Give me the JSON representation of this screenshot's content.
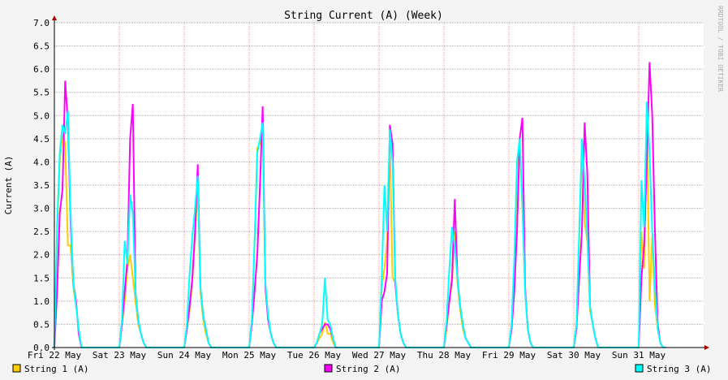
{
  "chart_data": {
    "type": "line",
    "title": "String Current (A) (Week)",
    "y_label": "Current (A)",
    "watermark": "RRDTOOL / TOBI OETIKER",
    "x": [
      0,
      1,
      2,
      3,
      4,
      5,
      6,
      7,
      8,
      9,
      10,
      24,
      25,
      26,
      27,
      28,
      29,
      30,
      31,
      32,
      33,
      34,
      48,
      49,
      50,
      51,
      52,
      53,
      54,
      55,
      56,
      57,
      58,
      72,
      73,
      74,
      75,
      76,
      77,
      78,
      79,
      80,
      81,
      82,
      96,
      97,
      98,
      99,
      100,
      101,
      102,
      103,
      104,
      105,
      106,
      120,
      121,
      122,
      123,
      124,
      125,
      126,
      127,
      128,
      129,
      130,
      144,
      145,
      146,
      147,
      148,
      149,
      150,
      151,
      152,
      153,
      154,
      168,
      169,
      170,
      171,
      172,
      173,
      174,
      175,
      176,
      177,
      178,
      192,
      193,
      194,
      195,
      196,
      197,
      198,
      199,
      200,
      201,
      202,
      216,
      217,
      218,
      219,
      220,
      221,
      222,
      223,
      224,
      225,
      226
    ],
    "series": [
      {
        "name": "String 1 (A)",
        "color": "#ffcc00",
        "values": [
          0,
          2.5,
          4.0,
          4.6,
          4.4,
          2.2,
          2.2,
          1.3,
          0.9,
          0.4,
          0,
          0,
          0.5,
          1.0,
          1.7,
          2.0,
          1.5,
          1.0,
          0.5,
          0.3,
          0.1,
          0,
          0,
          0.4,
          0.8,
          1.4,
          2.4,
          3.5,
          1.2,
          0.6,
          0.3,
          0.1,
          0,
          0,
          0.6,
          2.2,
          4.3,
          4.4,
          4.6,
          1.3,
          0.6,
          0.3,
          0.1,
          0,
          0,
          0.1,
          0.2,
          0.3,
          0.55,
          0.3,
          0.3,
          0.1,
          0,
          0,
          0,
          0,
          1.3,
          1.7,
          2.3,
          4.5,
          1.5,
          1.4,
          0.7,
          0.3,
          0.1,
          0,
          0,
          0.4,
          1.0,
          1.4,
          2.5,
          1.4,
          0.8,
          0.4,
          0.2,
          0.1,
          0,
          0,
          0.4,
          1.3,
          3.9,
          4.4,
          3.0,
          1.2,
          0.4,
          0.1,
          0,
          0,
          0,
          0.5,
          2.3,
          4.3,
          2.7,
          2.3,
          0.8,
          0.5,
          0.2,
          0,
          0,
          0,
          2.5,
          1.7,
          5.0,
          1.0,
          2.4,
          0.9,
          0.4,
          0.1,
          0,
          0
        ]
      },
      {
        "name": "String 2 (A)",
        "color": "#ff00ff",
        "values": [
          0,
          1.2,
          2.9,
          3.4,
          5.75,
          4.85,
          2.7,
          1.4,
          1.0,
          0.3,
          0,
          0,
          0.5,
          1.2,
          1.9,
          4.5,
          5.25,
          1.2,
          0.6,
          0.3,
          0.1,
          0,
          0,
          0.4,
          0.9,
          1.5,
          2.5,
          3.95,
          1.3,
          0.7,
          0.4,
          0.1,
          0,
          0,
          0.5,
          1.2,
          2.0,
          3.5,
          5.2,
          1.3,
          0.6,
          0.3,
          0.1,
          0,
          0,
          0.1,
          0.3,
          0.4,
          0.5,
          0.5,
          0.4,
          0.2,
          0,
          0,
          0,
          0,
          1.0,
          1.2,
          1.6,
          4.8,
          4.4,
          1.4,
          0.7,
          0.3,
          0.1,
          0,
          0,
          0.5,
          1.0,
          1.5,
          3.2,
          1.5,
          0.9,
          0.5,
          0.2,
          0.1,
          0,
          0,
          0.4,
          1.2,
          2.5,
          4.5,
          4.95,
          1.3,
          0.4,
          0.1,
          0,
          0,
          0,
          0.4,
          1.5,
          2.5,
          4.85,
          3.75,
          0.9,
          0.5,
          0.2,
          0,
          0,
          0,
          1.5,
          2.2,
          4.0,
          6.15,
          5.0,
          2.5,
          0.5,
          0.1,
          0,
          0
        ]
      },
      {
        "name": "String 3 (A)",
        "color": "#00ffff",
        "values": [
          0,
          2.6,
          4.2,
          4.8,
          4.6,
          5.1,
          2.9,
          1.4,
          0.9,
          0.4,
          0,
          0,
          0.6,
          2.3,
          1.8,
          3.3,
          2.9,
          1.2,
          0.6,
          0.3,
          0.1,
          0,
          0,
          0.5,
          1.6,
          2.4,
          3.0,
          3.7,
          1.3,
          0.7,
          0.4,
          0.1,
          0,
          0,
          0.6,
          2.3,
          4.2,
          4.5,
          4.85,
          1.4,
          0.7,
          0.3,
          0.1,
          0,
          0,
          0.1,
          0.3,
          0.5,
          1.5,
          0.6,
          0.5,
          0.2,
          0,
          0,
          0,
          0,
          1.5,
          3.5,
          2.5,
          4.7,
          4.0,
          1.5,
          0.7,
          0.3,
          0.1,
          0,
          0,
          0.6,
          1.7,
          2.6,
          2.2,
          1.5,
          0.9,
          0.5,
          0.2,
          0.1,
          0,
          0,
          0.5,
          1.9,
          4.0,
          4.5,
          3.1,
          1.2,
          0.4,
          0.1,
          0,
          0,
          0,
          0.5,
          2.5,
          4.5,
          3.6,
          2.4,
          0.9,
          0.5,
          0.2,
          0,
          0,
          0,
          3.6,
          2.6,
          5.3,
          4.2,
          2.5,
          1.3,
          0.4,
          0.1,
          0,
          0
        ]
      }
    ],
    "xlim": [
      0,
      240
    ],
    "xticks": [
      {
        "value": 0,
        "label": "Fri 22 May"
      },
      {
        "value": 24,
        "label": "Sat 23 May"
      },
      {
        "value": 48,
        "label": "Sun 24 May"
      },
      {
        "value": 72,
        "label": "Mon 25 May"
      },
      {
        "value": 96,
        "label": "Tue 26 May"
      },
      {
        "value": 120,
        "label": "Wed 27 May"
      },
      {
        "value": 144,
        "label": "Thu 28 May"
      },
      {
        "value": 168,
        "label": "Fri 29 May"
      },
      {
        "value": 192,
        "label": "Sat 30 May"
      },
      {
        "value": 216,
        "label": "Sun 31 May"
      }
    ],
    "ylim": [
      0,
      7
    ],
    "yticks": [
      {
        "value": 0,
        "label": "0.0"
      },
      0.5,
      {
        "value": 1,
        "label": "1.0"
      },
      1.5,
      {
        "value": 2,
        "label": "2.0"
      },
      2.5,
      {
        "value": 3,
        "label": "3.0"
      },
      3.5,
      {
        "value": 4,
        "label": "4.0"
      },
      4.5,
      {
        "value": 5,
        "label": "5.0"
      },
      5.5,
      {
        "value": 6,
        "label": "6.0"
      },
      6.5,
      {
        "value": 7,
        "label": "7.0"
      }
    ],
    "grid": true
  }
}
